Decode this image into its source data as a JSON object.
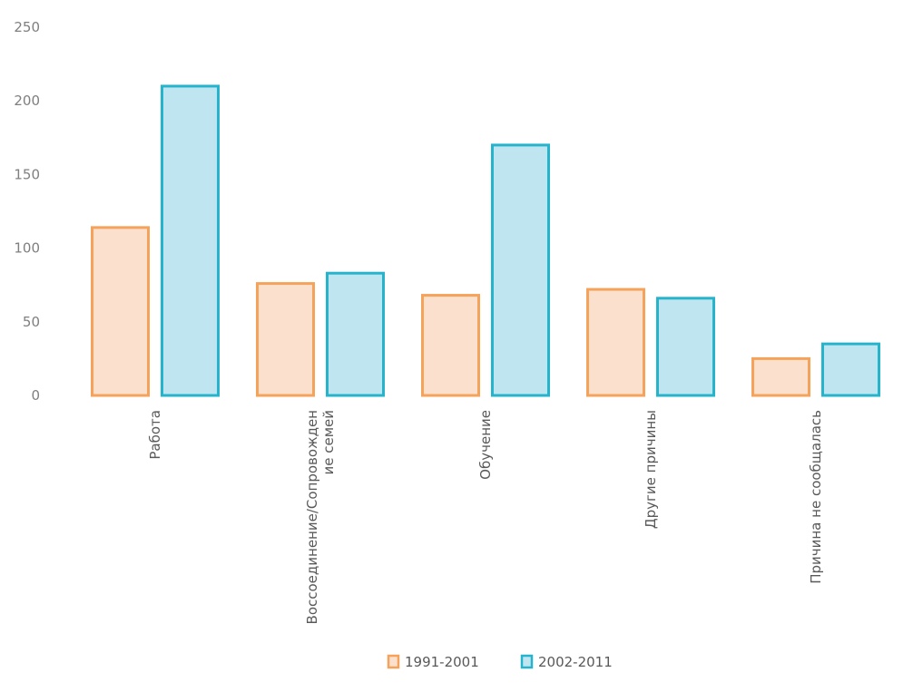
{
  "chart_data": {
    "type": "bar",
    "categories": [
      [
        "Работа"
      ],
      [
        "Воссоединение/Сопровожден",
        "ие семей"
      ],
      [
        "Обучение"
      ],
      [
        "Другие причины"
      ],
      [
        "Причина не сообщалась"
      ]
    ],
    "series": [
      {
        "name": "1991-2001",
        "values": [
          114,
          76,
          68,
          72,
          25
        ],
        "fill": "#fbe0cd",
        "stroke": "#f5a35a"
      },
      {
        "name": "2002-2011",
        "values": [
          210,
          83,
          170,
          66,
          35
        ],
        "fill": "#bfe6f0",
        "stroke": "#26b3cc"
      }
    ],
    "ylim": [
      0,
      250
    ],
    "yticks": [
      0,
      50,
      100,
      150,
      200,
      250
    ],
    "grid": false,
    "legend_position": "bottom"
  }
}
